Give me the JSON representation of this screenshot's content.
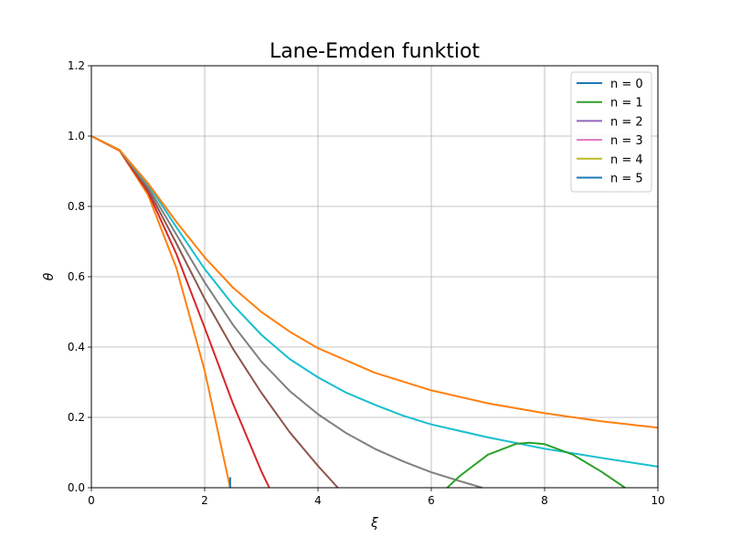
{
  "chart_data": {
    "type": "line",
    "title": "Lane-Emden funktiot",
    "xlabel": "ξ",
    "ylabel": "θ",
    "xlim": [
      0,
      10
    ],
    "ylim": [
      0,
      1.2
    ],
    "xticks": [
      0,
      2,
      4,
      6,
      8,
      10
    ],
    "yticks": [
      0.0,
      0.2,
      0.4,
      0.6,
      0.8,
      1.0,
      1.2
    ],
    "xtick_labels": [
      "0",
      "2",
      "4",
      "6",
      "8",
      "10"
    ],
    "ytick_labels": [
      "0.0",
      "0.2",
      "0.4",
      "0.6",
      "0.8",
      "1.0",
      "1.2"
    ],
    "grid": true,
    "legend_position": "top-right",
    "legend": [
      {
        "label": "n = 0",
        "color": "#1f77b4"
      },
      {
        "label": "n = 1",
        "color": "#2ca02c"
      },
      {
        "label": "n = 2",
        "color": "#9467bd"
      },
      {
        "label": "n = 3",
        "color": "#e377c2"
      },
      {
        "label": "n = 4",
        "color": "#bcbd22"
      },
      {
        "label": "n = 5",
        "color": "#1f77b4"
      }
    ],
    "series": [
      {
        "color": "#ff7f0e",
        "points": [
          [
            0,
            1.0
          ],
          [
            0.5,
            0.958
          ],
          [
            1.0,
            0.833
          ],
          [
            1.5,
            0.625
          ],
          [
            2.0,
            0.333
          ],
          [
            2.45,
            0.0
          ]
        ]
      },
      {
        "color": "#d62728",
        "points": [
          [
            0,
            1.0
          ],
          [
            0.5,
            0.959
          ],
          [
            1.0,
            0.841
          ],
          [
            1.5,
            0.665
          ],
          [
            2.0,
            0.455
          ],
          [
            2.5,
            0.239
          ],
          [
            3.0,
            0.047
          ],
          [
            3.14,
            0.0
          ]
        ]
      },
      {
        "color": "#8c564b",
        "points": [
          [
            0,
            1.0
          ],
          [
            0.5,
            0.96
          ],
          [
            1.0,
            0.848
          ],
          [
            1.5,
            0.695
          ],
          [
            2.0,
            0.537
          ],
          [
            2.5,
            0.395
          ],
          [
            3.0,
            0.27
          ],
          [
            3.5,
            0.158
          ],
          [
            4.0,
            0.062
          ],
          [
            4.35,
            0.0
          ]
        ]
      },
      {
        "color": "#7f7f7f",
        "points": [
          [
            0,
            1.0
          ],
          [
            0.5,
            0.96
          ],
          [
            1.0,
            0.855
          ],
          [
            1.5,
            0.72
          ],
          [
            2.0,
            0.584
          ],
          [
            2.5,
            0.463
          ],
          [
            3.0,
            0.359
          ],
          [
            3.5,
            0.275
          ],
          [
            4.0,
            0.209
          ],
          [
            4.5,
            0.155
          ],
          [
            5.0,
            0.111
          ],
          [
            5.5,
            0.075
          ],
          [
            6.0,
            0.044
          ],
          [
            6.5,
            0.019
          ],
          [
            6.9,
            0.0
          ]
        ]
      },
      {
        "color": "#17becf",
        "points": [
          [
            0,
            1.0
          ],
          [
            0.5,
            0.96
          ],
          [
            1.0,
            0.863
          ],
          [
            1.5,
            0.741
          ],
          [
            2.0,
            0.622
          ],
          [
            2.5,
            0.52
          ],
          [
            3.0,
            0.435
          ],
          [
            3.5,
            0.366
          ],
          [
            4.0,
            0.314
          ],
          [
            4.5,
            0.27
          ],
          [
            5.0,
            0.236
          ],
          [
            5.5,
            0.205
          ],
          [
            6.0,
            0.18
          ],
          [
            7.0,
            0.143
          ],
          [
            8.0,
            0.111
          ],
          [
            9.0,
            0.085
          ],
          [
            10.0,
            0.06
          ]
        ]
      },
      {
        "color": "#ff7f0e",
        "points": [
          [
            0,
            1.0
          ],
          [
            0.5,
            0.96
          ],
          [
            1.0,
            0.866
          ],
          [
            1.5,
            0.756
          ],
          [
            2.0,
            0.655
          ],
          [
            2.5,
            0.569
          ],
          [
            3.0,
            0.5
          ],
          [
            3.5,
            0.444
          ],
          [
            4.0,
            0.397
          ],
          [
            5.0,
            0.327
          ],
          [
            6.0,
            0.277
          ],
          [
            7.0,
            0.24
          ],
          [
            8.0,
            0.212
          ],
          [
            9.0,
            0.189
          ],
          [
            10.0,
            0.171
          ]
        ]
      },
      {
        "color": "#2ca02c",
        "points": [
          [
            6.28,
            0.0
          ],
          [
            6.5,
            0.033
          ],
          [
            7.0,
            0.094
          ],
          [
            7.5,
            0.125
          ],
          [
            7.73,
            0.128
          ],
          [
            8.0,
            0.124
          ],
          [
            8.5,
            0.094
          ],
          [
            9.0,
            0.046
          ],
          [
            9.42,
            0.0
          ]
        ]
      }
    ],
    "extra_segments": [
      {
        "color": "#1f77b4",
        "points": [
          [
            2.45,
            0.03
          ],
          [
            2.45,
            0.0
          ]
        ]
      }
    ]
  }
}
